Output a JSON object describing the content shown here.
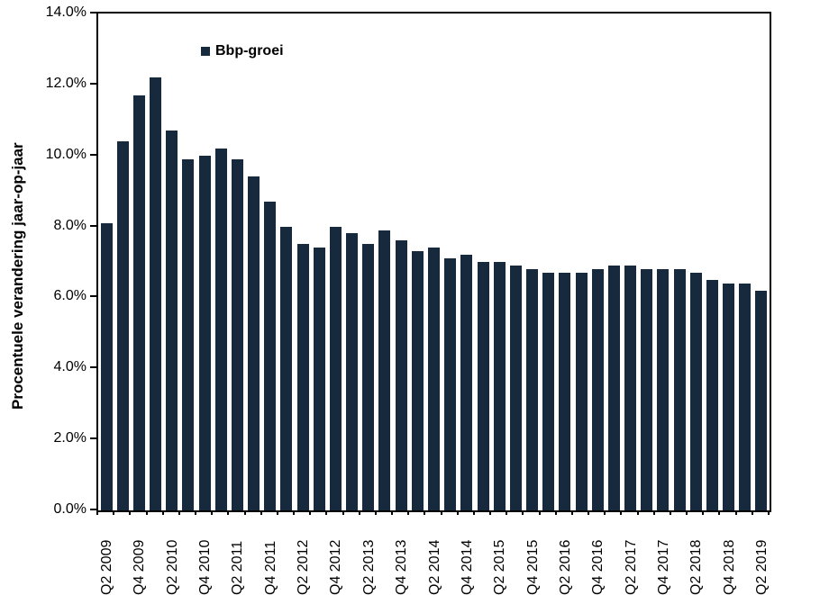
{
  "chart_data": {
    "type": "bar",
    "title": "",
    "xlabel": "",
    "ylabel": "Procentuele verandering jaar-op-jaar",
    "ylim": [
      0,
      14
    ],
    "grid": false,
    "legend": {
      "position": "top-left",
      "entries": [
        {
          "label": "Bbp-groei",
          "color": "#17293D"
        }
      ]
    },
    "y_ticks": [
      {
        "value": 14,
        "label": "14.0%"
      },
      {
        "value": 12,
        "label": "12.0%"
      },
      {
        "value": 10,
        "label": "10.0%"
      },
      {
        "value": 8,
        "label": "8.0%"
      },
      {
        "value": 6,
        "label": "6.0%"
      },
      {
        "value": 4,
        "label": "4.0%"
      },
      {
        "value": 2,
        "label": "2.0%"
      },
      {
        "value": 0,
        "label": "0.0%"
      }
    ],
    "categories": [
      "Q2 2009",
      "Q3 2009",
      "Q4 2009",
      "Q1 2010",
      "Q2 2010",
      "Q3 2010",
      "Q4 2010",
      "Q1 2011",
      "Q2 2011",
      "Q3 2011",
      "Q4 2011",
      "Q1 2012",
      "Q2 2012",
      "Q3 2012",
      "Q4 2012",
      "Q1 2013",
      "Q2 2013",
      "Q3 2013",
      "Q4 2013",
      "Q1 2014",
      "Q2 2014",
      "Q3 2014",
      "Q4 2014",
      "Q1 2015",
      "Q2 2015",
      "Q3 2015",
      "Q4 2015",
      "Q1 2016",
      "Q2 2016",
      "Q3 2016",
      "Q4 2016",
      "Q1 2017",
      "Q2 2017",
      "Q3 2017",
      "Q4 2017",
      "Q1 2018",
      "Q2 2018",
      "Q3 2018",
      "Q4 2018",
      "Q1 2019",
      "Q2 2019"
    ],
    "x_label_interval": 2,
    "x_tick_labels_shown": [
      "Q2 2009",
      "Q4 2009",
      "Q2 2010",
      "Q4 2010",
      "Q2 2011",
      "Q4 2011",
      "Q2 2012",
      "Q4 2012",
      "Q2 2013",
      "Q4 2013",
      "Q2 2014",
      "Q4 2014",
      "Q2 2015",
      "Q4 2015",
      "Q2 2016",
      "Q4 2016",
      "Q2 2017",
      "Q4 2017",
      "Q2 2018",
      "Q4 2018",
      "Q2 2019"
    ],
    "series": [
      {
        "name": "Bbp-groei",
        "values": [
          8.1,
          10.4,
          11.7,
          12.2,
          10.7,
          9.9,
          10.0,
          10.2,
          9.9,
          9.4,
          8.7,
          8.0,
          7.5,
          7.4,
          8.0,
          7.8,
          7.5,
          7.9,
          7.6,
          7.3,
          7.4,
          7.1,
          7.2,
          7.0,
          7.0,
          6.9,
          6.8,
          6.7,
          6.7,
          6.7,
          6.8,
          6.9,
          6.9,
          6.8,
          6.8,
          6.8,
          6.7,
          6.5,
          6.4,
          6.4,
          6.2
        ]
      }
    ]
  },
  "colors": {
    "bar": "#17293D",
    "axis": "#000000",
    "text": "#000000",
    "background": "#FFFFFF"
  }
}
